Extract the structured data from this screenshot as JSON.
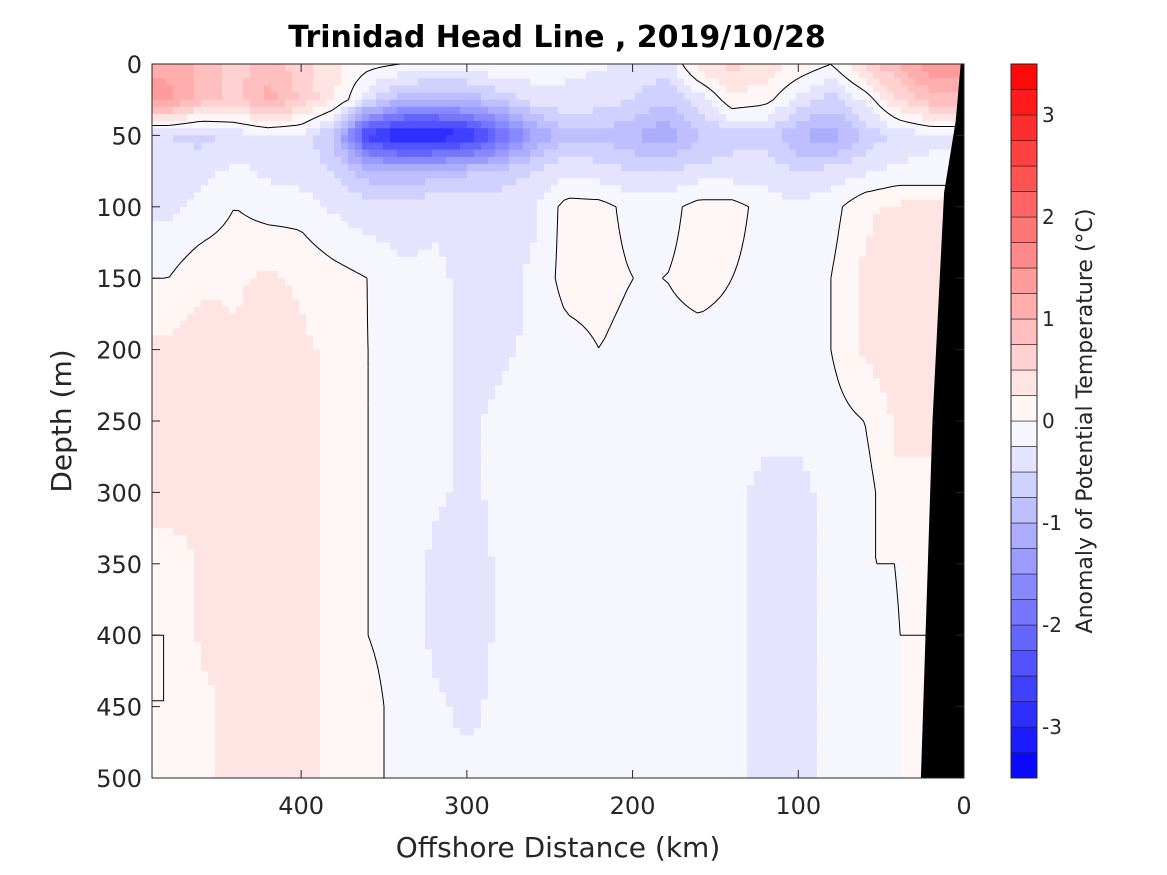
{
  "chart_data": {
    "type": "heatmap",
    "title": "Trinidad Head Line , 2019/10/28",
    "xlabel": "Offshore Distance (km)",
    "ylabel": "Depth (m)",
    "xlim": [
      490,
      0
    ],
    "ylim": [
      0,
      500
    ],
    "x_reversed": true,
    "y_reversed": true,
    "xticks": [
      400,
      300,
      200,
      100,
      0
    ],
    "yticks": [
      0,
      50,
      100,
      150,
      200,
      250,
      300,
      350,
      400,
      450,
      500
    ],
    "colorbar": {
      "label": "Anomaly of Potential Temperature (°C)",
      "range": [
        -3.5,
        3.5
      ],
      "step": 0.25,
      "ticks": [
        3,
        2,
        1,
        0,
        -1,
        -2,
        -3
      ],
      "colors": {
        "negative_max": "#0000ff",
        "zero": "#ffffff",
        "positive_max": "#ff0000"
      }
    },
    "grid": false,
    "land_mask_color": "#000000",
    "x": [
      480,
      460,
      440,
      420,
      400,
      380,
      360,
      340,
      320,
      300,
      280,
      260,
      240,
      220,
      200,
      180,
      160,
      140,
      120,
      100,
      80,
      60,
      40,
      20
    ],
    "depths": [
      0,
      25,
      50,
      75,
      100,
      150,
      200,
      250,
      300,
      350,
      400,
      450,
      500
    ],
    "values": [
      [
        1.2,
        0.9,
        0.6,
        0.9,
        0.6,
        0.3,
        0.1,
        0.0,
        -0.1,
        -0.1,
        0.0,
        -0.1,
        -0.2,
        -0.2,
        -0.3,
        -0.4,
        0.4,
        0.6,
        0.4,
        0.2,
        0.0,
        0.6,
        1.0,
        1.4
      ],
      [
        1.3,
        0.9,
        0.7,
        1.1,
        0.7,
        0.3,
        -0.4,
        -0.9,
        -1.0,
        -0.9,
        -0.7,
        -0.4,
        -0.3,
        -0.4,
        -0.5,
        -0.7,
        -0.4,
        0.2,
        0.1,
        -0.3,
        -0.6,
        -0.2,
        0.5,
        0.9
      ],
      [
        -0.5,
        -0.6,
        -0.4,
        -0.3,
        -0.3,
        -0.8,
        -2.6,
        -3.1,
        -3.1,
        -2.8,
        -2.1,
        -1.3,
        -0.8,
        -0.8,
        -1.0,
        -1.2,
        -0.8,
        -0.6,
        -0.6,
        -1.0,
        -1.2,
        -0.7,
        -0.4,
        -0.3
      ],
      [
        -0.3,
        -0.3,
        -0.2,
        -0.3,
        -0.4,
        -0.5,
        -0.9,
        -1.0,
        -0.9,
        -0.8,
        -0.7,
        -0.5,
        -0.3,
        -0.4,
        -0.5,
        -0.5,
        -0.4,
        -0.4,
        -0.4,
        -0.5,
        -0.4,
        -0.3,
        -0.2,
        -0.2
      ],
      [
        -0.3,
        -0.2,
        0.0,
        -0.1,
        -0.1,
        -0.3,
        -0.4,
        -0.4,
        -0.3,
        -0.3,
        -0.3,
        -0.3,
        0.1,
        0.1,
        -0.1,
        -0.1,
        0.1,
        0.1,
        -0.1,
        -0.2,
        -0.1,
        0.2,
        0.3,
        0.3
      ],
      [
        0.0,
        0.2,
        0.2,
        0.3,
        0.2,
        0.1,
        0.0,
        -0.2,
        -0.2,
        -0.3,
        -0.4,
        -0.2,
        0.1,
        0.1,
        0.0,
        0.0,
        0.1,
        0.0,
        -0.1,
        -0.1,
        0.0,
        0.3,
        0.4,
        0.3
      ],
      [
        0.3,
        0.4,
        0.3,
        0.4,
        0.3,
        0.2,
        0.0,
        -0.1,
        -0.2,
        -0.3,
        -0.3,
        -0.2,
        -0.1,
        0.0,
        -0.1,
        -0.1,
        -0.1,
        -0.1,
        -0.1,
        -0.1,
        0.0,
        0.3,
        0.4,
        0.3
      ],
      [
        0.4,
        0.3,
        0.3,
        0.3,
        0.3,
        0.2,
        0.0,
        -0.1,
        -0.2,
        -0.3,
        -0.2,
        -0.1,
        -0.1,
        -0.1,
        -0.1,
        -0.1,
        -0.1,
        -0.1,
        -0.2,
        -0.2,
        -0.1,
        0.0,
        0.3,
        0.3
      ],
      [
        0.4,
        0.3,
        0.3,
        0.3,
        0.3,
        0.2,
        0.0,
        -0.1,
        -0.2,
        -0.3,
        -0.2,
        -0.1,
        -0.1,
        -0.1,
        -0.2,
        -0.2,
        -0.1,
        -0.2,
        -0.3,
        -0.3,
        -0.2,
        -0.1,
        0.2,
        0.2
      ],
      [
        0.1,
        0.3,
        0.3,
        0.4,
        0.3,
        0.2,
        0.0,
        -0.1,
        -0.3,
        -0.4,
        -0.2,
        -0.1,
        -0.1,
        -0.1,
        -0.2,
        -0.2,
        -0.1,
        -0.2,
        -0.3,
        -0.3,
        -0.2,
        0.0,
        0.0,
        0.1
      ],
      [
        0.0,
        0.3,
        0.3,
        0.4,
        0.3,
        0.2,
        0.0,
        -0.1,
        -0.3,
        -0.4,
        -0.2,
        -0.1,
        -0.1,
        -0.1,
        -0.2,
        -0.1,
        -0.1,
        -0.2,
        -0.3,
        -0.3,
        -0.2,
        -0.1,
        0.0,
        0.0
      ],
      [
        0.0,
        0.2,
        0.3,
        0.4,
        0.3,
        0.2,
        0.1,
        -0.1,
        -0.2,
        -0.3,
        -0.2,
        -0.1,
        -0.1,
        -0.1,
        -0.2,
        -0.1,
        -0.1,
        -0.2,
        -0.3,
        -0.3,
        -0.2,
        -0.1,
        0.0,
        0.0
      ],
      [
        0.1,
        0.2,
        0.3,
        0.4,
        0.3,
        0.2,
        0.1,
        -0.1,
        -0.2,
        -0.2,
        -0.2,
        -0.1,
        0.0,
        0.0,
        -0.1,
        -0.1,
        -0.2,
        -0.2,
        -0.3,
        -0.3,
        -0.2,
        -0.1,
        0.0,
        0.0
      ]
    ]
  }
}
